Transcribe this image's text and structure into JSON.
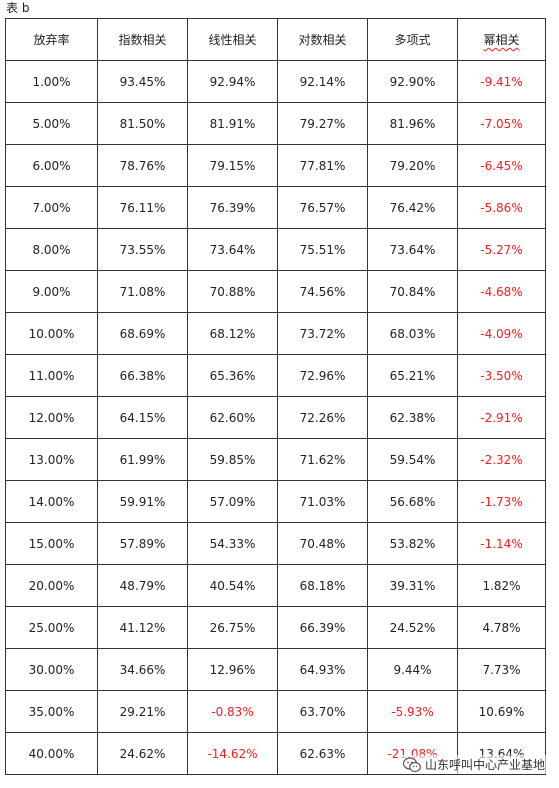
{
  "caption": "表 b",
  "headers": [
    "放弃率",
    "指数相关",
    "线性相关",
    "对数相关",
    "多项式",
    "幂相关"
  ],
  "rows": [
    [
      "1.00%",
      "93.45%",
      "92.94%",
      "92.14%",
      "92.90%",
      "-9.41%"
    ],
    [
      "5.00%",
      "81.50%",
      "81.91%",
      "79.27%",
      "81.96%",
      "-7.05%"
    ],
    [
      "6.00%",
      "78.76%",
      "79.15%",
      "77.81%",
      "79.20%",
      "-6.45%"
    ],
    [
      "7.00%",
      "76.11%",
      "76.39%",
      "76.57%",
      "76.42%",
      "-5.86%"
    ],
    [
      "8.00%",
      "73.55%",
      "73.64%",
      "75.51%",
      "73.64%",
      "-5.27%"
    ],
    [
      "9.00%",
      "71.08%",
      "70.88%",
      "74.56%",
      "70.84%",
      "-4.68%"
    ],
    [
      "10.00%",
      "68.69%",
      "68.12%",
      "73.72%",
      "68.03%",
      "-4.09%"
    ],
    [
      "11.00%",
      "66.38%",
      "65.36%",
      "72.96%",
      "65.21%",
      "-3.50%"
    ],
    [
      "12.00%",
      "64.15%",
      "62.60%",
      "72.26%",
      "62.38%",
      "-2.91%"
    ],
    [
      "13.00%",
      "61.99%",
      "59.85%",
      "71.62%",
      "59.54%",
      "-2.32%"
    ],
    [
      "14.00%",
      "59.91%",
      "57.09%",
      "71.03%",
      "56.68%",
      "-1.73%"
    ],
    [
      "15.00%",
      "57.89%",
      "54.33%",
      "70.48%",
      "53.82%",
      "-1.14%"
    ],
    [
      "20.00%",
      "48.79%",
      "40.54%",
      "68.18%",
      "39.31%",
      "1.82%"
    ],
    [
      "25.00%",
      "41.12%",
      "26.75%",
      "66.39%",
      "24.52%",
      "4.78%"
    ],
    [
      "30.00%",
      "34.66%",
      "12.96%",
      "64.93%",
      "9.44%",
      "7.73%"
    ],
    [
      "35.00%",
      "29.21%",
      "-0.83%",
      "63.70%",
      "-5.93%",
      "10.69%"
    ],
    [
      "40.00%",
      "24.62%",
      "-14.62%",
      "62.63%",
      "-21.08%",
      "13.64%"
    ]
  ],
  "watermark": "山东呼叫中心产业基地",
  "colors": {
    "negative": "#ee2222",
    "border": "#333333",
    "text": "#222222"
  }
}
